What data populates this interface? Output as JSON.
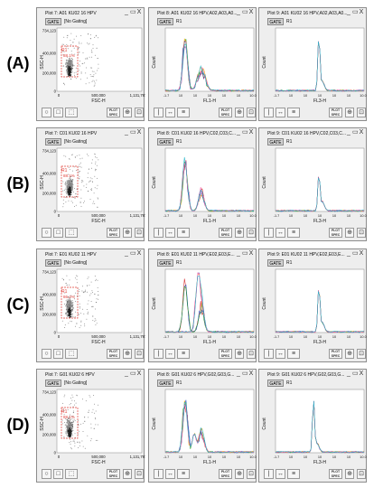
{
  "rows": [
    {
      "label": "(A)",
      "scatter": {
        "title": "Plot 7: A01 KU02 16 HPV",
        "gate_btn": "GATE",
        "gate": "[No Gating]",
        "region": "R1",
        "pct": "88.1%"
      },
      "fl1": {
        "title": "Plot 8: A01 KU02 16 HPV,A02,A03,A0...",
        "gate_btn": "GATE",
        "gate": "R1"
      },
      "fl3": {
        "title": "Plot 9: A01 KU02 16 HPV,A02,A03,A0...",
        "gate_btn": "GATE",
        "gate": "R1"
      }
    },
    {
      "label": "(B)",
      "scatter": {
        "title": "Plot 7: C01 KU02 16 HPV",
        "gate_btn": "GATE",
        "gate": "[No Gating]",
        "region": "R1",
        "pct": "88.1%"
      },
      "fl1": {
        "title": "Plot 8: C01 KU02 16 HPV,C02,C03,C...",
        "gate_btn": "GATE",
        "gate": "R1"
      },
      "fl3": {
        "title": "Plot 9: C01 KU02 16 HPV,C02,C03,C...",
        "gate_btn": "GATE",
        "gate": "R1"
      }
    },
    {
      "label": "(C)",
      "scatter": {
        "title": "Plot 7: E01 KU02 11 HPV",
        "gate_btn": "GATE",
        "gate": "[No Gating]",
        "region": "R1",
        "pct": "86.4%"
      },
      "fl1": {
        "title": "Plot 8: E01 KU02 11 HPV,E02,E03,E...",
        "gate_btn": "GATE",
        "gate": "R1"
      },
      "fl3": {
        "title": "Plot 9: E01 KU02 11 HPV,E02,E03,E...",
        "gate_btn": "GATE",
        "gate": "R1"
      }
    },
    {
      "label": "(D)",
      "scatter": {
        "title": "Plot 7: G01 KU02 6 HPV",
        "gate_btn": "GATE",
        "gate": "[No Gating]",
        "region": "R1",
        "pct": "88.1%"
      },
      "fl1": {
        "title": "Plot 8: G01 KU02 6 HPV,G02,G03,G...",
        "gate_btn": "GATE",
        "gate": "R1"
      },
      "fl3": {
        "title": "Plot 9: G01 KU02 6 HPV,G02,G03,G...",
        "gate_btn": "GATE",
        "gate": "R1"
      }
    }
  ],
  "axes": {
    "ssc_label": "SSC-H",
    "fsc_label": "FSC-H",
    "fl1_label": "FL1-H",
    "fl3_label": "FL3-H",
    "count_label": "Count",
    "y_ticks": [
      "734,123",
      "400,000",
      "200,000",
      "0"
    ],
    "x_ticks": [
      "0",
      "500,000",
      "1,131,797"
    ],
    "log_ticks": [
      "-1.7",
      "10",
      "10",
      "10",
      "10",
      "10",
      "10.0"
    ]
  },
  "window_buttons": {
    "minimize": "_",
    "restore": "▭",
    "close": "X"
  },
  "toolbar": {
    "plot_spec_label": "PLOT SPEC"
  },
  "icons": {
    "scatter_toolbar": [
      "circle-icon",
      "square-icon",
      "region-icon",
      "plot-spec-icon",
      "zoom-icon",
      "fit-icon"
    ],
    "hist_toolbar": [
      "marker-icon",
      "range-icon",
      "list-icon",
      "plot-spec-icon",
      "zoom-icon",
      "fit-icon"
    ]
  },
  "colors": {
    "panel_bg": "#eeeeee",
    "gate_dash": "#e0403a",
    "hist_series": [
      "#d62728",
      "#1f57c9",
      "#2ca02c",
      "#f2a600",
      "#7b4aa8",
      "#ff69b4",
      "#22b5c9"
    ]
  }
}
